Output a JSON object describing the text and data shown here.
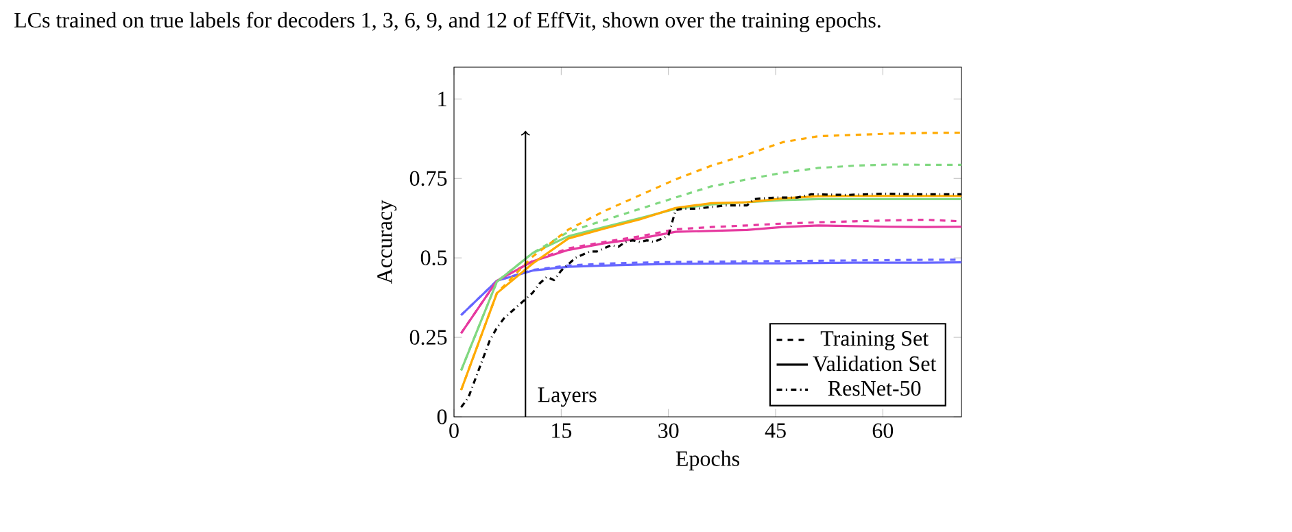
{
  "chart_data": {
    "type": "line",
    "xlabel": "Epochs",
    "ylabel": "Accuracy",
    "annotations": [
      "LCs trained on true labels for decoders 1, 3, 6, 9, and 12 of EffVit, shown over the training epochs.",
      {
        "text": "Layers",
        "x": 10,
        "y": 0.9
      }
    ],
    "xlim": [
      0,
      71
    ],
    "ylim": [
      0,
      1.1
    ],
    "xticks": [
      0,
      15,
      30,
      45,
      60
    ],
    "yticks": [
      0,
      0.25,
      0.5,
      0.75,
      1
    ],
    "grid": false,
    "legend": "bottom right",
    "x": [
      1,
      6,
      11,
      16,
      21,
      26,
      31,
      36,
      41,
      46,
      51,
      56,
      61,
      66,
      71
    ],
    "series": [
      {
        "name": "Training Set",
        "color": "#000000",
        "line_style": "dashed",
        "values": [
          null,
          null,
          null,
          null,
          null,
          null,
          null,
          null,
          null,
          null,
          null,
          null,
          null,
          null,
          null
        ]
      },
      {
        "name": "Validation Set",
        "color": "#000000",
        "line_style": "solid",
        "values": [
          null,
          null,
          null,
          null,
          null,
          null,
          null,
          null,
          null,
          null,
          null,
          null,
          null,
          null,
          null
        ]
      },
      {
        "color": "#6666ff",
        "line_style": "dashed",
        "values": [
          0.32,
          0.428,
          0.462,
          0.476,
          0.482,
          0.485,
          0.487,
          0.488,
          0.489,
          0.49,
          0.491,
          0.492,
          0.493,
          0.494,
          0.494
        ]
      },
      {
        "color": "#6666ff",
        "line_style": "solid",
        "values": [
          0.32,
          0.428,
          0.46,
          0.472,
          0.476,
          0.479,
          0.481,
          0.482,
          0.483,
          0.483,
          0.484,
          0.485,
          0.485,
          0.485,
          0.486
        ]
      },
      {
        "color": "#e6399f",
        "line_style": "dashed",
        "values": [
          0.263,
          0.428,
          0.49,
          0.53,
          0.55,
          0.568,
          0.59,
          0.597,
          0.602,
          0.608,
          0.612,
          0.615,
          0.618,
          0.62,
          0.615
        ]
      },
      {
        "color": "#e6399f",
        "line_style": "solid",
        "values": [
          0.263,
          0.428,
          0.489,
          0.525,
          0.546,
          0.561,
          0.582,
          0.585,
          0.588,
          0.597,
          0.602,
          0.6,
          0.598,
          0.597,
          0.598
        ]
      },
      {
        "color": "#80d880",
        "line_style": "dashed",
        "values": [
          0.146,
          0.425,
          0.515,
          0.582,
          0.618,
          0.654,
          0.69,
          0.725,
          0.747,
          0.768,
          0.783,
          0.79,
          0.794,
          0.793,
          0.793
        ]
      },
      {
        "color": "#80d880",
        "line_style": "solid",
        "values": [
          0.146,
          0.425,
          0.515,
          0.568,
          0.597,
          0.625,
          0.654,
          0.668,
          0.675,
          0.682,
          0.685,
          0.685,
          0.685,
          0.685,
          0.685
        ]
      },
      {
        "color": "#ffaa00",
        "line_style": "dashed",
        "values": [
          0.084,
          0.389,
          0.504,
          0.589,
          0.647,
          0.697,
          0.747,
          0.79,
          0.825,
          0.864,
          0.883,
          0.887,
          0.891,
          0.893,
          0.894
        ]
      },
      {
        "color": "#ffaa00",
        "line_style": "solid",
        "values": [
          0.084,
          0.389,
          0.482,
          0.561,
          0.592,
          0.621,
          0.657,
          0.672,
          0.675,
          0.687,
          0.694,
          0.695,
          0.695,
          0.695,
          0.695
        ]
      },
      {
        "name": "ResNet-50",
        "color": "#000000",
        "line_style": "dashdot",
        "x": [
          1,
          2,
          3,
          4,
          5,
          6,
          7,
          8,
          9,
          10,
          11,
          12,
          13,
          14,
          15,
          16,
          17,
          18,
          19,
          20,
          21,
          22,
          23,
          24,
          25,
          26,
          27,
          28,
          29,
          30,
          31,
          32,
          34,
          36,
          38,
          41,
          42,
          45,
          48,
          50,
          55,
          60,
          65,
          71
        ],
        "values": [
          0.03,
          0.06,
          0.12,
          0.18,
          0.24,
          0.28,
          0.31,
          0.33,
          0.35,
          0.37,
          0.39,
          0.42,
          0.44,
          0.43,
          0.46,
          0.48,
          0.5,
          0.51,
          0.52,
          0.52,
          0.53,
          0.54,
          0.535,
          0.55,
          0.555,
          0.55,
          0.555,
          0.55,
          0.56,
          0.57,
          0.65,
          0.655,
          0.655,
          0.66,
          0.665,
          0.665,
          0.685,
          0.69,
          0.69,
          0.7,
          0.698,
          0.702,
          0.7,
          0.7
        ]
      }
    ]
  }
}
